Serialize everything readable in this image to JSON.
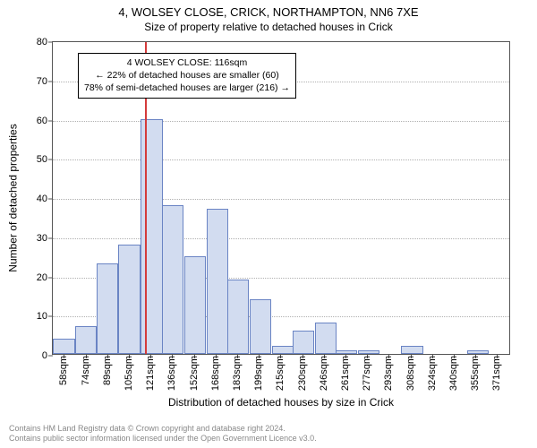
{
  "title": "4, WOLSEY CLOSE, CRICK, NORTHAMPTON, NN6 7XE",
  "subtitle": "Size of property relative to detached houses in Crick",
  "ylabel": "Number of detached properties",
  "xlabel": "Distribution of detached houses by size in Crick",
  "footer_line1": "Contains HM Land Registry data © Crown copyright and database right 2024.",
  "footer_line2": "Contains public sector information licensed under the Open Government Licence v3.0.",
  "annotation": {
    "line1": "4 WOLSEY CLOSE: 116sqm",
    "line2": "← 22% of detached houses are smaller (60)",
    "line3": "78% of semi-detached houses are larger (216) →"
  },
  "chart": {
    "type": "histogram",
    "ylim": [
      0,
      80
    ],
    "ytick_step": 10,
    "bar_color": "#d2dcf0",
    "bar_border": "#6a84c4",
    "marker_color": "#d43b3b",
    "grid_color": "#b0b0b0",
    "axis_color": "#555555",
    "background_color": "#ffffff",
    "footer_color": "#888888",
    "title_fontsize": 13,
    "subtitle_fontsize": 12,
    "label_fontsize": 12,
    "tick_fontsize": 11,
    "anno_fontsize": 10.5,
    "marker_x_sqm": 116,
    "x_min_sqm": 50,
    "x_max_sqm": 379,
    "x_tick_start": 58,
    "x_tick_step": 15.55,
    "x_tick_count": 21,
    "x_tick_labels": [
      "58sqm",
      "74sqm",
      "89sqm",
      "105sqm",
      "121sqm",
      "136sqm",
      "152sqm",
      "168sqm",
      "183sqm",
      "199sqm",
      "215sqm",
      "230sqm",
      "246sqm",
      "261sqm",
      "277sqm",
      "293sqm",
      "308sqm",
      "324sqm",
      "340sqm",
      "355sqm",
      "371sqm"
    ],
    "bars": [
      {
        "x": 58,
        "h": 4
      },
      {
        "x": 74,
        "h": 7
      },
      {
        "x": 89,
        "h": 23
      },
      {
        "x": 105,
        "h": 28
      },
      {
        "x": 121,
        "h": 60
      },
      {
        "x": 136,
        "h": 38
      },
      {
        "x": 152,
        "h": 25
      },
      {
        "x": 168,
        "h": 37
      },
      {
        "x": 183,
        "h": 19
      },
      {
        "x": 199,
        "h": 14
      },
      {
        "x": 215,
        "h": 2
      },
      {
        "x": 230,
        "h": 6
      },
      {
        "x": 246,
        "h": 8
      },
      {
        "x": 261,
        "h": 1
      },
      {
        "x": 277,
        "h": 1
      },
      {
        "x": 293,
        "h": 0
      },
      {
        "x": 308,
        "h": 2
      },
      {
        "x": 324,
        "h": 0
      },
      {
        "x": 340,
        "h": 0
      },
      {
        "x": 355,
        "h": 1
      },
      {
        "x": 371,
        "h": 0
      }
    ]
  }
}
